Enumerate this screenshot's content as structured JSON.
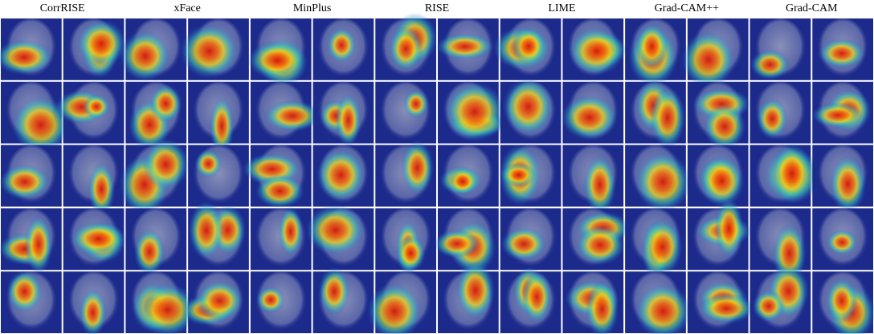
{
  "figure": {
    "methods": [
      "CorrRISE",
      "xFace",
      "MinPlus",
      "RISE",
      "LIME",
      "Grad-CAM++",
      "Grad-CAM"
    ]
  }
}
